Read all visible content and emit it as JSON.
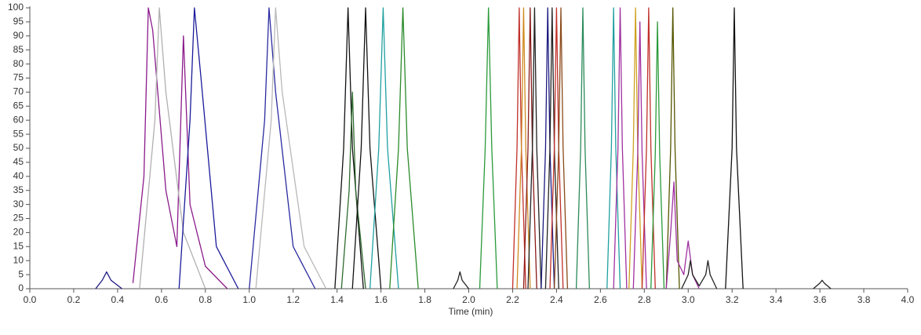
{
  "chart_data": {
    "type": "line",
    "x_label": "Time (min)",
    "xlim": [
      0,
      4
    ],
    "ylim": [
      0,
      100
    ],
    "xticks": [
      {
        "value": 0,
        "label": "0.0"
      },
      0.2,
      0.4,
      0.6,
      0.8,
      {
        "value": 1,
        "label": "1.0"
      },
      1.2,
      1.4,
      1.6,
      1.8,
      {
        "value": 2,
        "label": "2.0"
      },
      2.2,
      2.4,
      2.6,
      2.8,
      {
        "value": 3,
        "label": "3.0"
      },
      3.2,
      3.4,
      3.6,
      3.8,
      {
        "value": 4,
        "label": "4.0"
      }
    ],
    "yticks": [
      0,
      5,
      10,
      15,
      20,
      25,
      30,
      35,
      40,
      45,
      50,
      55,
      60,
      65,
      70,
      75,
      80,
      85,
      90,
      95,
      100
    ],
    "series": [
      {
        "color": "#1a1a80",
        "x": [
          0.3,
          0.33,
          0.35,
          0.37,
          0.42
        ],
        "values": [
          0,
          3,
          6,
          3,
          0
        ]
      },
      {
        "color": "#8b1a8b",
        "x": [
          0.47,
          0.52,
          0.54,
          0.56,
          0.62,
          0.67,
          0.7,
          0.73,
          0.8,
          0.9
        ],
        "values": [
          2,
          40,
          100,
          92,
          35,
          15,
          90,
          30,
          8,
          0
        ]
      },
      {
        "color": "#b0b0b0",
        "x": [
          0.5,
          0.57,
          0.59,
          0.62,
          0.7,
          0.8
        ],
        "values": [
          0,
          60,
          100,
          70,
          20,
          0
        ]
      },
      {
        "color": "#1a1a9a",
        "x": [
          0.68,
          0.73,
          0.75,
          0.78,
          0.85,
          0.95
        ],
        "values": [
          0,
          60,
          100,
          75,
          15,
          0
        ]
      },
      {
        "color": "#2a2aa0",
        "x": [
          1.0,
          1.07,
          1.09,
          1.12,
          1.2,
          1.3
        ],
        "values": [
          0,
          60,
          100,
          70,
          15,
          0
        ]
      },
      {
        "color": "#b8b8b8",
        "x": [
          1.03,
          1.1,
          1.12,
          1.15,
          1.25,
          1.35
        ],
        "values": [
          0,
          60,
          100,
          70,
          15,
          0
        ]
      },
      {
        "color": "#111111",
        "x": [
          1.39,
          1.43,
          1.45,
          1.47,
          1.52
        ],
        "values": [
          0,
          50,
          100,
          50,
          0
        ]
      },
      {
        "color": "#2e6b2e",
        "x": [
          1.42,
          1.455,
          1.47,
          1.485,
          1.53
        ],
        "values": [
          0,
          35,
          70,
          35,
          0
        ]
      },
      {
        "color": "#111111",
        "x": [
          1.47,
          1.51,
          1.53,
          1.55,
          1.6
        ],
        "values": [
          0,
          50,
          100,
          50,
          0
        ]
      },
      {
        "color": "#20a0a0",
        "x": [
          1.55,
          1.59,
          1.61,
          1.63,
          1.68
        ],
        "values": [
          0,
          50,
          100,
          50,
          0
        ]
      },
      {
        "color": "#2a8a2a",
        "x": [
          1.64,
          1.68,
          1.7,
          1.72,
          1.77
        ],
        "values": [
          0,
          50,
          100,
          50,
          0
        ]
      },
      {
        "color": "#222222",
        "x": [
          1.93,
          1.95,
          1.96,
          1.97,
          2.0
        ],
        "values": [
          0,
          3,
          6,
          3,
          0
        ]
      },
      {
        "color": "#2a9a3a",
        "x": [
          2.05,
          2.075,
          2.09,
          2.105,
          2.13
        ],
        "values": [
          0,
          50,
          100,
          50,
          0
        ]
      },
      {
        "color": "#c0302a",
        "x": [
          2.2,
          2.22,
          2.23,
          2.24,
          2.26
        ],
        "values": [
          0,
          50,
          100,
          50,
          0
        ]
      },
      {
        "color": "#d08a20",
        "x": [
          2.22,
          2.24,
          2.25,
          2.26,
          2.28
        ],
        "values": [
          0,
          50,
          100,
          50,
          0
        ]
      },
      {
        "color": "#8a1a1a",
        "x": [
          2.25,
          2.27,
          2.28,
          2.29,
          2.31
        ],
        "values": [
          0,
          50,
          100,
          50,
          0
        ]
      },
      {
        "color": "#222222",
        "x": [
          2.27,
          2.29,
          2.3,
          2.31,
          2.33
        ],
        "values": [
          0,
          50,
          100,
          50,
          0
        ]
      },
      {
        "color": "#1a1a80",
        "x": [
          2.33,
          2.35,
          2.36,
          2.37,
          2.39
        ],
        "values": [
          0,
          50,
          100,
          50,
          0
        ]
      },
      {
        "color": "#222222",
        "x": [
          2.35,
          2.37,
          2.38,
          2.39,
          2.41
        ],
        "values": [
          0,
          50,
          100,
          50,
          0
        ]
      },
      {
        "color": "#c0302a",
        "x": [
          2.37,
          2.39,
          2.4,
          2.41,
          2.43
        ],
        "values": [
          0,
          50,
          100,
          50,
          0
        ]
      },
      {
        "color": "#8a4a1a",
        "x": [
          2.39,
          2.41,
          2.42,
          2.43,
          2.45
        ],
        "values": [
          0,
          50,
          100,
          50,
          0
        ]
      },
      {
        "color": "#2a8a5a",
        "x": [
          2.49,
          2.51,
          2.52,
          2.53,
          2.55
        ],
        "values": [
          0,
          50,
          100,
          50,
          0
        ]
      },
      {
        "color": "#20a0a0",
        "x": [
          2.63,
          2.65,
          2.66,
          2.67,
          2.69
        ],
        "values": [
          0,
          50,
          100,
          50,
          0
        ]
      },
      {
        "color": "#a030a0",
        "x": [
          2.66,
          2.68,
          2.69,
          2.7,
          2.72
        ],
        "values": [
          0,
          50,
          100,
          50,
          0
        ]
      },
      {
        "color": "#d0a020",
        "x": [
          2.73,
          2.75,
          2.76,
          2.77,
          2.79
        ],
        "values": [
          0,
          50,
          100,
          50,
          0
        ]
      },
      {
        "color": "#a030a0",
        "x": [
          2.75,
          2.77,
          2.78,
          2.79,
          2.81
        ],
        "values": [
          0,
          48,
          95,
          48,
          0
        ]
      },
      {
        "color": "#c0302a",
        "x": [
          2.79,
          2.81,
          2.82,
          2.83,
          2.85
        ],
        "values": [
          0,
          50,
          100,
          50,
          0
        ]
      },
      {
        "color": "#2a9a3a",
        "x": [
          2.83,
          2.85,
          2.86,
          2.87,
          2.89
        ],
        "values": [
          0,
          48,
          95,
          48,
          0
        ]
      },
      {
        "color": "#555500",
        "x": [
          2.9,
          2.92,
          2.93,
          2.94,
          2.96
        ],
        "values": [
          0,
          50,
          100,
          50,
          0
        ]
      },
      {
        "color": "#a030a0",
        "x": [
          2.9,
          2.92,
          2.935,
          2.95,
          2.98,
          3.0,
          3.02,
          3.05
        ],
        "values": [
          0,
          20,
          38,
          10,
          5,
          17,
          5,
          0
        ]
      },
      {
        "color": "#222222",
        "x": [
          2.97,
          3.0,
          3.01,
          3.02,
          3.05,
          3.08,
          3.09,
          3.1,
          3.13
        ],
        "values": [
          0,
          5,
          10,
          5,
          1,
          5,
          10,
          5,
          0
        ]
      },
      {
        "color": "#111111",
        "x": [
          3.17,
          3.2,
          3.21,
          3.22,
          3.25
        ],
        "values": [
          0,
          50,
          100,
          50,
          0
        ]
      },
      {
        "color": "#222222",
        "x": [
          3.57,
          3.6,
          3.61,
          3.62,
          3.65
        ],
        "values": [
          0,
          2,
          3,
          2,
          0
        ]
      }
    ]
  }
}
